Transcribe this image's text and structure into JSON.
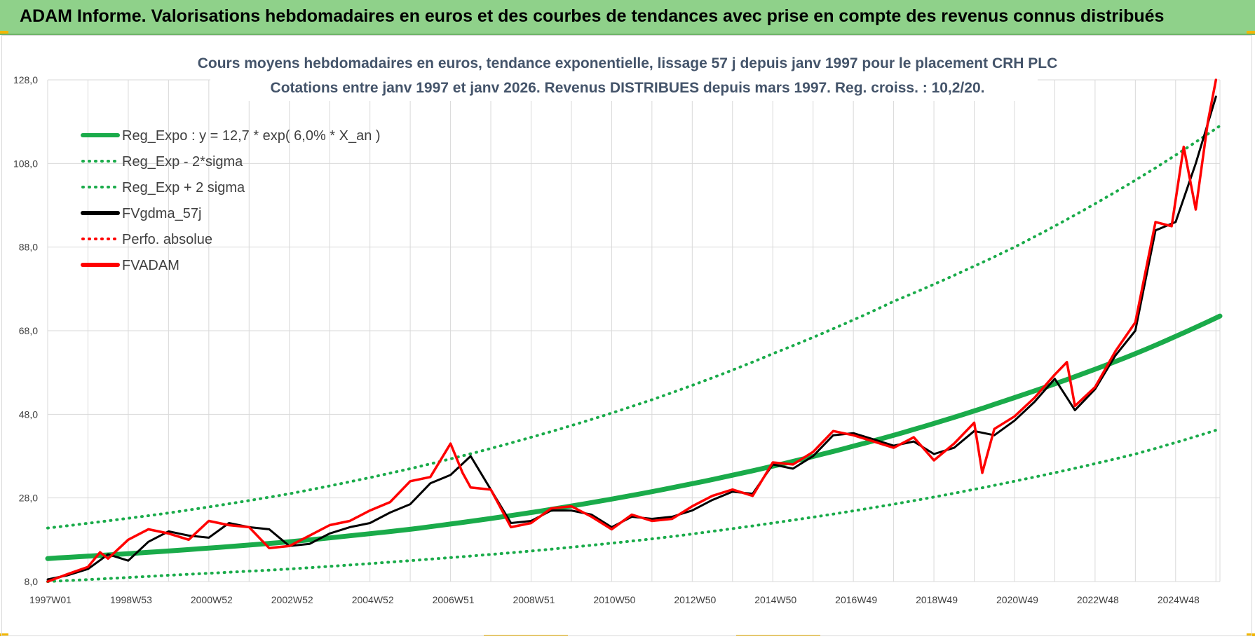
{
  "banner": {
    "title": "ADAM Informe. Valorisations hebdomadaires en euros et des courbes de tendances avec prise en compte des revenus connus distribués"
  },
  "colors": {
    "green": "#1aab4a",
    "black": "#000000",
    "red": "#ff0000",
    "grid": "#d9d9d9",
    "title": "#44546a",
    "banner": "#8fd18a"
  },
  "chart_data": {
    "type": "line",
    "title": "Cours moyens hebdomadaires en euros, tendance exponentielle, lissage 57 j depuis janv 1997 pour le placement CRH PLC",
    "subtitle": "Cotations entre janv 1997 et janv 2026. Revenus DISTRIBUES depuis mars 1997. Reg. croiss. : 10,2/20.",
    "xlabel": "",
    "ylabel": "",
    "xlim": [
      1997.0,
      2026.1
    ],
    "ylim": [
      8,
      128
    ],
    "grid": true,
    "legend_position": "top-left",
    "y_ticks": [
      "8,0",
      "28,0",
      "48,0",
      "68,0",
      "88,0",
      "108,0",
      "128,0"
    ],
    "x_ticks": [
      {
        "label": "1997W01",
        "x": 1997.0
      },
      {
        "label": "1998W53",
        "x": 1999.0
      },
      {
        "label": "2000W52",
        "x": 2001.0
      },
      {
        "label": "2002W52",
        "x": 2003.0
      },
      {
        "label": "2004W52",
        "x": 2005.0
      },
      {
        "label": "2006W51",
        "x": 2007.0
      },
      {
        "label": "2008W51",
        "x": 2009.0
      },
      {
        "label": "2010W50",
        "x": 2011.0
      },
      {
        "label": "2012W50",
        "x": 2013.0
      },
      {
        "label": "2014W50",
        "x": 2015.0
      },
      {
        "label": "2016W49",
        "x": 2017.0
      },
      {
        "label": "2018W49",
        "x": 2019.0
      },
      {
        "label": "2020W49",
        "x": 2021.0
      },
      {
        "label": "2022W48",
        "x": 2023.0
      },
      {
        "label": "2024W48",
        "x": 2025.0
      }
    ],
    "series": [
      {
        "name": "Reg_Expo : y = 12,7 * exp( 6,0% *  X_an )",
        "style": "solid-green",
        "x": [
          1997.0,
          2000.0,
          2003.0,
          2006.0,
          2009.0,
          2012.0,
          2015.0,
          2018.0,
          2021.0,
          2024.0,
          2026.1
        ],
        "values": [
          13.5,
          15.3,
          17.5,
          20.5,
          24.5,
          29.5,
          35.6,
          43.0,
          52.0,
          62.5,
          71.5
        ]
      },
      {
        "name": "Reg_Exp - 2*sigma",
        "style": "dotted-green",
        "x": [
          1997.0,
          2000.0,
          2003.0,
          2006.0,
          2009.0,
          2012.0,
          2015.0,
          2018.0,
          2021.0,
          2024.0,
          2026.1
        ],
        "values": [
          8.0,
          9.5,
          11.0,
          13.0,
          15.3,
          18.2,
          22.0,
          26.5,
          32.0,
          38.5,
          44.5
        ]
      },
      {
        "name": "Reg_Exp + 2 sigma",
        "style": "dotted-green",
        "x": [
          1997.0,
          2000.0,
          2003.0,
          2006.0,
          2009.0,
          2012.0,
          2015.0,
          2018.0,
          2021.0,
          2024.0,
          2026.1
        ],
        "values": [
          20.8,
          24.4,
          29.0,
          35.0,
          42.5,
          51.5,
          62.5,
          75.0,
          88.0,
          104.0,
          117.0
        ]
      },
      {
        "name": "FVgdma_57j",
        "style": "solid-black",
        "x": [
          1997.0,
          1997.5,
          1998.0,
          1998.5,
          1999.0,
          1999.5,
          2000.0,
          2000.5,
          2001.0,
          2001.5,
          2002.0,
          2002.5,
          2003.0,
          2003.5,
          2004.0,
          2004.5,
          2005.0,
          2005.5,
          2006.0,
          2006.5,
          2007.0,
          2007.5,
          2008.0,
          2008.5,
          2009.0,
          2009.5,
          2010.0,
          2010.5,
          2011.0,
          2011.5,
          2012.0,
          2012.5,
          2013.0,
          2013.5,
          2014.0,
          2014.5,
          2015.0,
          2015.5,
          2016.0,
          2016.5,
          2017.0,
          2017.5,
          2018.0,
          2018.5,
          2019.0,
          2019.5,
          2020.0,
          2020.5,
          2021.0,
          2021.5,
          2022.0,
          2022.5,
          2023.0,
          2023.5,
          2024.0,
          2024.5,
          2025.0,
          2025.5,
          2026.0
        ],
        "values": [
          8.5,
          9.5,
          11.0,
          14.5,
          13.0,
          17.5,
          20.0,
          19.0,
          18.5,
          22.0,
          21.0,
          20.5,
          16.5,
          17.0,
          19.5,
          21.0,
          22.0,
          24.5,
          26.5,
          31.5,
          33.5,
          38.0,
          30.0,
          22.0,
          22.5,
          25.0,
          25.0,
          24.0,
          21.0,
          23.5,
          23.0,
          23.5,
          25.0,
          27.5,
          29.5,
          29.0,
          36.0,
          35.0,
          38.0,
          43.0,
          43.5,
          42.0,
          40.5,
          41.5,
          38.5,
          40.0,
          44.0,
          43.0,
          46.5,
          51.0,
          56.5,
          49.0,
          54.0,
          62.0,
          68.0,
          92.0,
          94.0,
          108.0,
          124.0
        ]
      },
      {
        "name": "Perfo. absolue",
        "style": "dotted-red",
        "x": [],
        "values": []
      },
      {
        "name": "FVADAM",
        "style": "solid-red",
        "x": [
          1997.0,
          1997.5,
          1998.0,
          1998.3,
          1998.5,
          1999.0,
          1999.5,
          2000.0,
          2000.5,
          2001.0,
          2001.5,
          2002.0,
          2002.5,
          2003.0,
          2003.5,
          2004.0,
          2004.5,
          2005.0,
          2005.5,
          2006.0,
          2006.5,
          2007.0,
          2007.3,
          2007.5,
          2008.0,
          2008.5,
          2009.0,
          2009.5,
          2010.0,
          2010.5,
          2011.0,
          2011.5,
          2012.0,
          2012.5,
          2013.0,
          2013.5,
          2014.0,
          2014.5,
          2015.0,
          2015.5,
          2016.0,
          2016.5,
          2017.0,
          2017.5,
          2018.0,
          2018.5,
          2019.0,
          2019.5,
          2020.0,
          2020.2,
          2020.5,
          2021.0,
          2021.5,
          2022.0,
          2022.3,
          2022.5,
          2023.0,
          2023.5,
          2024.0,
          2024.5,
          2024.9,
          2025.2,
          2025.5,
          2025.8,
          2026.0
        ],
        "values": [
          8.0,
          9.8,
          11.5,
          15.0,
          13.5,
          18.0,
          20.5,
          19.5,
          18.0,
          22.5,
          21.5,
          21.0,
          16.0,
          16.5,
          19.0,
          21.5,
          22.5,
          25.0,
          27.0,
          32.0,
          33.0,
          41.0,
          34.0,
          30.5,
          30.0,
          21.0,
          22.0,
          25.5,
          26.0,
          23.5,
          20.5,
          24.0,
          22.5,
          23.0,
          26.0,
          28.5,
          30.0,
          28.5,
          36.5,
          36.0,
          39.0,
          44.0,
          43.0,
          41.5,
          40.0,
          42.5,
          37.0,
          41.0,
          46.0,
          34.0,
          44.5,
          47.5,
          52.0,
          57.5,
          60.5,
          50.0,
          54.5,
          63.0,
          70.0,
          94.0,
          93.0,
          112.0,
          97.0,
          118.0,
          128.0
        ]
      }
    ]
  }
}
